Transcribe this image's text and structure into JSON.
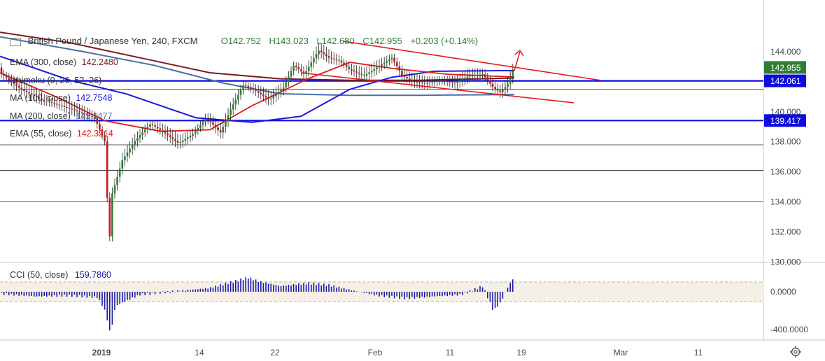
{
  "header": {
    "symbol": "British Pound / Japanese Yen, 240, FXCM",
    "open": "O142.752",
    "high": "H143.023",
    "low": "L142.680",
    "close": "C142.955",
    "change": "+0.203 (+0.14%)"
  },
  "indicators": [
    {
      "name": "EMA (300, close)",
      "value": "142.2480",
      "color": "#7b1e1e"
    },
    {
      "name": "Ichimoku (9, 26, 52, 26)",
      "value": "",
      "color": "#4a4a4a"
    },
    {
      "name": "MA (100, close)",
      "value": "142.7548",
      "color": "#1a1adf"
    },
    {
      "name": "MA (200, close)",
      "value": "141.1477",
      "color": "#4a6fa5"
    },
    {
      "name": "EMA (55, close)",
      "value": "142.3214",
      "color": "#e31a1a"
    }
  ],
  "cci": {
    "name": "CCI (50, close)",
    "value": "159.7860"
  },
  "colors": {
    "up": "#26a69a",
    "down": "#ef5350",
    "candle_body": "#2e7d32",
    "ema55": "#e31a1a",
    "ema300": "#7b1e1e",
    "ma100": "#1a1adf",
    "ma200": "#4a6fa5",
    "trend": "#e31a1a",
    "level": "#0d0ddf",
    "cci": "#1a1aaa",
    "price_tag": "#2e7d32",
    "level_tag": "#0d0ddf"
  },
  "price_axis": {
    "ticks": [
      "144.000",
      "140.000",
      "138.000",
      "136.000",
      "134.000",
      "132.000",
      "130.000"
    ],
    "tags": [
      {
        "label": "142.955",
        "kind": "price"
      },
      {
        "label": "142.061",
        "kind": "level"
      },
      {
        "label": "139.417",
        "kind": "level"
      }
    ]
  },
  "cci_axis": {
    "ticks": [
      "0.0000",
      "-400.0000"
    ]
  },
  "time_axis": {
    "ticks": [
      "2019",
      "14",
      "22",
      "Feb",
      "11",
      "19",
      "Mar",
      "11"
    ]
  },
  "chart_data": {
    "type": "candlestick",
    "title": "British Pound / Japanese Yen, 240, FXCM",
    "xlabel": "",
    "ylabel": "",
    "ylim": [
      130,
      146
    ],
    "x_ticks": [
      "2019",
      "14",
      "22",
      "Feb",
      "11",
      "19",
      "Mar",
      "11"
    ],
    "y_ticks": [
      144,
      142,
      140,
      138,
      136,
      134,
      132,
      130
    ],
    "horizontal_levels": [
      142.061,
      141.5,
      139.417,
      137.8,
      136.1,
      134.0
    ],
    "ohlc": {
      "open": 142.752,
      "high": 143.023,
      "low": 142.68,
      "close": 142.955
    },
    "series": [
      {
        "name": "EMA (300, close)",
        "last": 142.248
      },
      {
        "name": "MA (100, close)",
        "last": 142.7548
      },
      {
        "name": "MA (200, close)",
        "last": 141.1477
      },
      {
        "name": "EMA (55, close)",
        "last": 142.3214
      },
      {
        "name": "CCI (50, close)",
        "last": 159.786
      }
    ],
    "price_path": [
      [
        0,
        142.6
      ],
      [
        30,
        141.5
      ],
      [
        60,
        140.8
      ],
      [
        100,
        140.2
      ],
      [
        135,
        139.6
      ],
      [
        150,
        138.0
      ],
      [
        156,
        131.0
      ],
      [
        160,
        134.5
      ],
      [
        175,
        136.8
      ],
      [
        195,
        138.2
      ],
      [
        215,
        139.2
      ],
      [
        235,
        138.6
      ],
      [
        255,
        137.9
      ],
      [
        275,
        138.5
      ],
      [
        295,
        139.6
      ],
      [
        315,
        138.6
      ],
      [
        330,
        140.2
      ],
      [
        348,
        141.8
      ],
      [
        365,
        141.4
      ],
      [
        385,
        140.8
      ],
      [
        405,
        141.6
      ],
      [
        420,
        143.1
      ],
      [
        435,
        142.5
      ],
      [
        455,
        144.1
      ],
      [
        470,
        143.6
      ],
      [
        485,
        143.4
      ],
      [
        500,
        142.8
      ],
      [
        520,
        142.4
      ],
      [
        540,
        143.0
      ],
      [
        560,
        143.6
      ],
      [
        575,
        142.4
      ],
      [
        590,
        142.0
      ],
      [
        610,
        141.9
      ],
      [
        630,
        142.1
      ],
      [
        650,
        141.9
      ],
      [
        670,
        142.4
      ],
      [
        690,
        142.5
      ],
      [
        705,
        141.6
      ],
      [
        715,
        141.3
      ],
      [
        725,
        141.8
      ],
      [
        735,
        142.95
      ]
    ],
    "cci_path": [
      [
        0,
        -20
      ],
      [
        50,
        -50
      ],
      [
        100,
        -40
      ],
      [
        140,
        -60
      ],
      [
        150,
        -200
      ],
      [
        158,
        -450
      ],
      [
        165,
        -150
      ],
      [
        200,
        -30
      ],
      [
        250,
        5
      ],
      [
        300,
        40
      ],
      [
        340,
        120
      ],
      [
        355,
        150
      ],
      [
        370,
        110
      ],
      [
        400,
        60
      ],
      [
        440,
        90
      ],
      [
        470,
        70
      ],
      [
        500,
        20
      ],
      [
        540,
        -40
      ],
      [
        580,
        -70
      ],
      [
        620,
        -50
      ],
      [
        660,
        -30
      ],
      [
        690,
        60
      ],
      [
        705,
        -200
      ],
      [
        715,
        -120
      ],
      [
        725,
        40
      ],
      [
        735,
        160
      ]
    ],
    "trendlines": [
      {
        "from": [
          490,
          144.7
        ],
        "to": [
          858,
          142.1
        ]
      },
      {
        "from": [
          430,
          142.6
        ],
        "to": [
          820,
          140.6
        ]
      }
    ]
  }
}
